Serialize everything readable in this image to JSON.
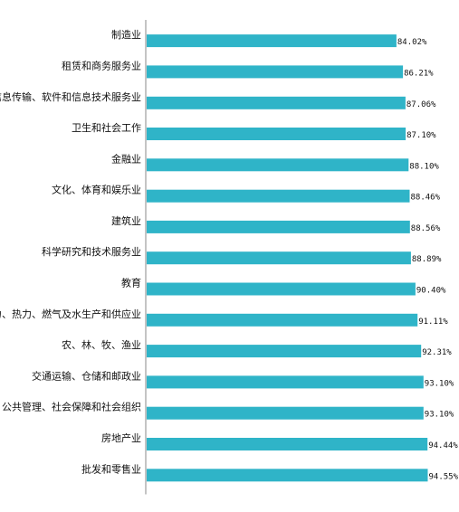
{
  "chart_data": {
    "type": "bar",
    "orientation": "horizontal",
    "title": "",
    "xlabel": "",
    "ylabel": "",
    "xlim": [
      0,
      95
    ],
    "grid": false,
    "legend": "none",
    "bar_color": "#2fb4c8",
    "categories": [
      "制造业",
      "租赁和商务服务业",
      "信息传输、软件和信息技术服务业",
      "卫生和社会工作",
      "金融业",
      "文化、体育和娱乐业",
      "建筑业",
      "科学研究和技术服务业",
      "教育",
      "电力、热力、燃气及水生产和供应业",
      "农、林、牧、渔业",
      "交通运输、仓储和邮政业",
      "公共管理、社会保障和社会组织",
      "房地产业",
      "批发和零售业"
    ],
    "values": [
      84.02,
      86.21,
      87.06,
      87.1,
      88.1,
      88.46,
      88.56,
      88.89,
      90.4,
      91.11,
      92.31,
      93.1,
      93.1,
      94.44,
      94.55
    ],
    "data_labels": [
      "84.02%",
      "86.21%",
      "87.06%",
      "87.10%",
      "88.10%",
      "88.46%",
      "88.56%",
      "88.89%",
      "90.40%",
      "91.11%",
      "92.31%",
      "93.10%",
      "93.10%",
      "94.44%",
      "94.55%"
    ]
  }
}
